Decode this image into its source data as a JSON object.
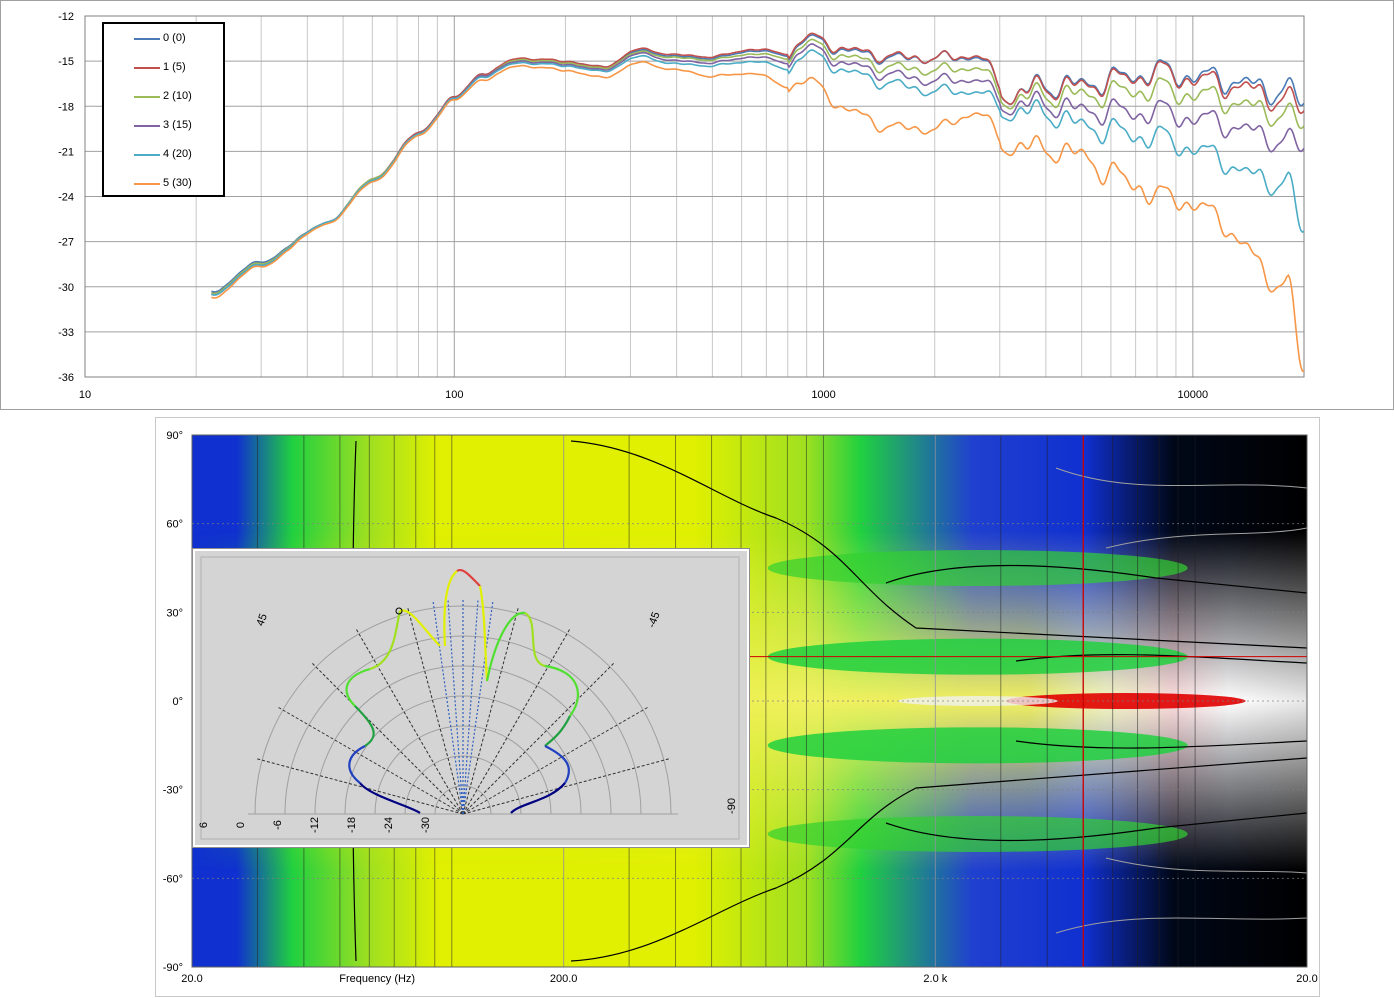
{
  "chart_data": [
    {
      "type": "line",
      "xscale": "log",
      "xlim": [
        10,
        20000
      ],
      "ylim": [
        -36,
        -12
      ],
      "x_ticks": [
        "10",
        "100",
        "1000",
        "10000"
      ],
      "y_ticks": [
        "-12",
        "-15",
        "-18",
        "-21",
        "-24",
        "-27",
        "-30",
        "-33",
        "-36"
      ],
      "grid": true,
      "legend_position": "top-left",
      "series": [
        {
          "name": "0 (0)",
          "color": "#4a7ab5",
          "x": [
            22,
            30,
            45,
            60,
            80,
            100,
            120,
            150,
            200,
            250,
            320,
            400,
            500,
            650,
            800,
            900,
            1200,
            1500,
            2000,
            2600,
            3200,
            4000,
            5000,
            6000,
            7000,
            8000,
            9000,
            10000,
            12000,
            14000,
            16000,
            18000,
            20000
          ],
          "y": [
            -30.3,
            -28.3,
            -25.8,
            -22.9,
            -19.8,
            -17.4,
            -15.8,
            -14.9,
            -15.0,
            -15.4,
            -14.3,
            -14.7,
            -14.8,
            -14.3,
            -14.6,
            -13.5,
            -14.4,
            -14.8,
            -14.8,
            -14.7,
            -17.3,
            -16.6,
            -16.6,
            -16.2,
            -16.0,
            -15.6,
            -15.9,
            -16.0,
            -16.2,
            -16.5,
            -17.0,
            -16.8,
            -18.0
          ]
        },
        {
          "name": "1 (5)",
          "color": "#c0504d",
          "x": [
            22,
            30,
            45,
            60,
            80,
            100,
            120,
            150,
            200,
            250,
            320,
            400,
            500,
            650,
            800,
            900,
            1200,
            1500,
            2000,
            2600,
            3200,
            4000,
            5000,
            6000,
            7000,
            8000,
            9000,
            10000,
            12000,
            14000,
            16000,
            18000,
            20000
          ],
          "y": [
            -30.4,
            -28.4,
            -25.8,
            -22.9,
            -19.8,
            -17.4,
            -15.8,
            -14.8,
            -15.0,
            -15.4,
            -14.2,
            -14.6,
            -14.7,
            -14.2,
            -14.5,
            -13.4,
            -14.3,
            -14.7,
            -14.8,
            -14.6,
            -17.3,
            -16.7,
            -16.7,
            -16.3,
            -16.1,
            -15.7,
            -16.0,
            -16.2,
            -16.5,
            -16.8,
            -17.4,
            -17.4,
            -18.5
          ]
        },
        {
          "name": "2 (10)",
          "color": "#9bbb59",
          "x": [
            22,
            30,
            45,
            60,
            80,
            100,
            120,
            150,
            200,
            250,
            320,
            400,
            500,
            650,
            800,
            900,
            1200,
            1500,
            2000,
            2600,
            3200,
            4000,
            5000,
            6000,
            7000,
            8000,
            9000,
            10000,
            12000,
            14000,
            16000,
            18000,
            20000
          ],
          "y": [
            -30.4,
            -28.4,
            -25.8,
            -22.9,
            -19.9,
            -17.5,
            -15.9,
            -14.9,
            -15.1,
            -15.5,
            -14.4,
            -14.8,
            -14.9,
            -14.5,
            -14.8,
            -13.8,
            -14.8,
            -15.4,
            -15.6,
            -15.4,
            -17.6,
            -17.2,
            -17.3,
            -17.1,
            -17.0,
            -16.8,
            -17.1,
            -17.2,
            -17.5,
            -18.0,
            -18.4,
            -18.5,
            -19.5
          ]
        },
        {
          "name": "3 (15)",
          "color": "#8064a2",
          "x": [
            22,
            30,
            45,
            60,
            80,
            100,
            120,
            150,
            200,
            250,
            320,
            400,
            500,
            650,
            800,
            900,
            1200,
            1500,
            2000,
            2600,
            3200,
            4000,
            5000,
            6000,
            7000,
            8000,
            9000,
            10000,
            12000,
            14000,
            16000,
            18000,
            20000
          ],
          "y": [
            -30.5,
            -28.5,
            -25.8,
            -23.0,
            -19.9,
            -17.5,
            -15.9,
            -15.0,
            -15.2,
            -15.6,
            -14.5,
            -15.0,
            -15.1,
            -14.7,
            -15.1,
            -14.1,
            -15.3,
            -15.9,
            -16.3,
            -16.2,
            -18.0,
            -17.8,
            -18.3,
            -18.3,
            -18.5,
            -18.3,
            -18.6,
            -18.8,
            -19.1,
            -19.6,
            -20.1,
            -20.2,
            -21.0
          ]
        },
        {
          "name": "4 (20)",
          "color": "#4bacc6",
          "x": [
            22,
            30,
            45,
            60,
            80,
            100,
            120,
            150,
            200,
            250,
            320,
            400,
            500,
            650,
            800,
            900,
            1200,
            1500,
            2000,
            2600,
            3200,
            4000,
            5000,
            6000,
            7000,
            8000,
            9000,
            10000,
            12000,
            14000,
            16000,
            18000,
            20000
          ],
          "y": [
            -30.5,
            -28.5,
            -25.8,
            -23.0,
            -19.9,
            -17.5,
            -16.0,
            -15.1,
            -15.3,
            -15.7,
            -14.7,
            -15.2,
            -15.3,
            -15.0,
            -15.5,
            -14.5,
            -15.8,
            -16.5,
            -17.0,
            -17.0,
            -18.4,
            -18.4,
            -19.3,
            -19.6,
            -20.0,
            -20.0,
            -20.5,
            -20.8,
            -21.5,
            -22.5,
            -23.0,
            -23.0,
            -26.5
          ]
        },
        {
          "name": "5 (30)",
          "color": "#f79646",
          "x": [
            22,
            30,
            45,
            60,
            80,
            100,
            120,
            150,
            200,
            250,
            320,
            400,
            500,
            650,
            800,
            900,
            1200,
            1500,
            2000,
            2600,
            3200,
            4000,
            5000,
            6000,
            7000,
            8000,
            9000,
            10000,
            12000,
            14000,
            16000,
            18000,
            20000
          ],
          "y": [
            -30.7,
            -28.6,
            -25.9,
            -23.1,
            -20.0,
            -17.6,
            -16.2,
            -15.3,
            -15.6,
            -16.1,
            -15.1,
            -15.6,
            -16.0,
            -15.8,
            -16.7,
            -16.3,
            -18.4,
            -19.4,
            -19.5,
            -18.4,
            -20.7,
            -20.8,
            -21.3,
            -22.5,
            -23.2,
            -24.0,
            -24.1,
            -24.5,
            -25.6,
            -27.5,
            -29.4,
            -29.8,
            -35.8
          ]
        }
      ]
    },
    {
      "type": "heatmap",
      "xscale": "log",
      "xlim": [
        20,
        20000
      ],
      "ylim": [
        -90,
        90
      ],
      "xlabel": "Frequency (Hz)",
      "x_ticks": [
        "20.0",
        "200.0",
        "2.0 k",
        "20.0"
      ],
      "y_ticks": [
        "90°",
        "60°",
        "30°",
        "0°",
        "-30°",
        "-60°",
        "-90°"
      ],
      "colors": {
        "low": "#000000",
        "mid_low": "#1030d0",
        "mid": "#20d040",
        "mid_high": "#e0f000",
        "high": "#f0f060",
        "peak": "#e00000"
      },
      "cursor_frequency": 5000,
      "cursor_angle": 15
    },
    {
      "type": "polar",
      "angle_labels": [
        "45",
        "-45",
        "-90"
      ],
      "radial_ticks": [
        "6",
        "0",
        "-6",
        "-12",
        "-18",
        "-24",
        "-30"
      ]
    }
  ]
}
